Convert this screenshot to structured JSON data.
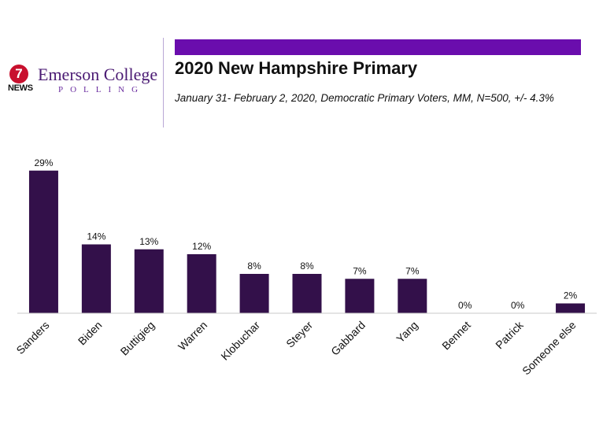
{
  "header": {
    "logo_badge": "7",
    "logo_news": "NEWS",
    "logo_name": "Emerson College",
    "logo_sub": "POLLING",
    "title": "2020 New Hampshire Primary",
    "subtitle": "January 31- February 2, 2020, Democratic Primary Voters, MM,  N=500, +/-  4.3%"
  },
  "colors": {
    "bar": "#33104a",
    "title_bar": "#6a0dad",
    "axis": "#c8c8c8"
  },
  "chart_data": {
    "type": "bar",
    "title": "2020 New Hampshire Primary",
    "xlabel": "",
    "ylabel": "",
    "grid": false,
    "legend": "none",
    "ylim": [
      0,
      30
    ],
    "categories": [
      "Sanders",
      "Biden",
      "Buttigieg",
      "Warren",
      "Klobuchar",
      "Steyer",
      "Gabbard",
      "Yang",
      "Bennet",
      "Patrick",
      "Someone else"
    ],
    "values": [
      29,
      14,
      13,
      12,
      8,
      8,
      7,
      7,
      0,
      0,
      2
    ],
    "data_labels": [
      "29%",
      "14%",
      "13%",
      "12%",
      "8%",
      "8%",
      "7%",
      "7%",
      "0%",
      "0%",
      "2%"
    ]
  }
}
